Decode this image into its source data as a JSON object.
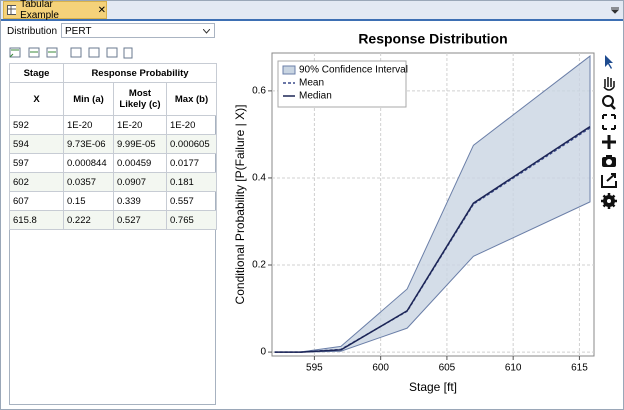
{
  "tab": {
    "title": "Tabular Example"
  },
  "distribution": {
    "label": "Distribution",
    "value": "PERT"
  },
  "table": {
    "group_headers": [
      "Stage",
      "Response Probability"
    ],
    "headers": [
      "X",
      "Min (a)",
      "Most Likely (c)",
      "Max (b)"
    ],
    "rows": [
      [
        "592",
        "1E-20",
        "1E-20",
        "1E-20"
      ],
      [
        "594",
        "9.73E-06",
        "9.99E-05",
        "0.000605"
      ],
      [
        "597",
        "0.000844",
        "0.00459",
        "0.0177"
      ],
      [
        "602",
        "0.0357",
        "0.0907",
        "0.181"
      ],
      [
        "607",
        "0.15",
        "0.339",
        "0.557"
      ],
      [
        "615.8",
        "0.222",
        "0.527",
        "0.765"
      ]
    ]
  },
  "chart_data": {
    "type": "line",
    "title": "Response Distribution",
    "xlabel": "Stage [ft]",
    "ylabel": "Conditional Probability  [P(Failure | X)]",
    "x": [
      592,
      594,
      597,
      602,
      607,
      615.8
    ],
    "series": [
      {
        "name": "90% Confidence Interval",
        "color": "#6b7fa8",
        "fill": "#c9d5e2",
        "upper": [
          0,
          0.0006,
          0.013,
          0.145,
          0.475,
          0.68
        ],
        "lower": [
          0,
          0,
          0.002,
          0.055,
          0.22,
          0.345
        ]
      },
      {
        "name": "Mean",
        "color": "#3a4a8a",
        "dashed": true,
        "values": [
          0,
          0,
          0.006,
          0.094,
          0.34,
          0.515
        ]
      },
      {
        "name": "Median",
        "color": "#1c2556",
        "values": [
          0,
          0,
          0.005,
          0.095,
          0.342,
          0.518
        ]
      }
    ],
    "xlim": [
      591.8,
      616.1
    ],
    "xticks": [
      595,
      600,
      605,
      610,
      615
    ],
    "ylim": [
      -0.009,
      0.687
    ],
    "yticks": [
      0,
      0.2,
      0.4,
      0.6
    ],
    "grid": true,
    "legend": "upper-left"
  }
}
